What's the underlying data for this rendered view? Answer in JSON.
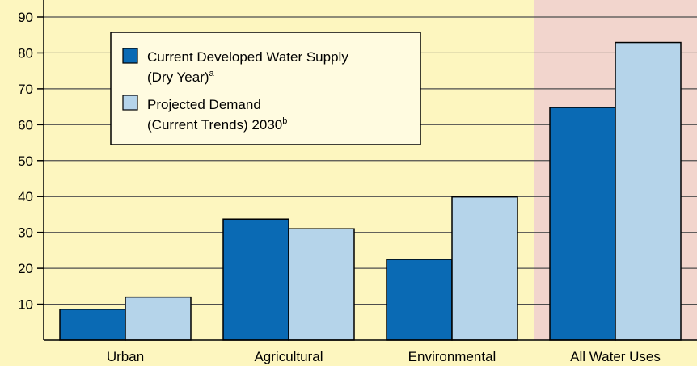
{
  "chart_data": {
    "type": "bar",
    "categories": [
      "Urban",
      "Agricultural",
      "Environmental",
      "All Water Uses"
    ],
    "series": [
      {
        "name": "Current Developed Water Supply (Dry Year)a",
        "legend_line1": "Current Developed Water Supply",
        "legend_line2": "(Dry Year)",
        "legend_sup": "a",
        "color": "#0a6ab4",
        "values": [
          8.6,
          33.7,
          22.5,
          64.8
        ]
      },
      {
        "name": "Projected Demand (Current Trends) 2030b",
        "legend_line1": "Projected Demand",
        "legend_line2": "(Current Trends) 2030",
        "legend_sup": "b",
        "color": "#b5d4ea",
        "values": [
          12.0,
          31.0,
          39.9,
          82.9
        ]
      }
    ],
    "ylim": [
      0,
      90
    ],
    "yticks": [
      "10",
      "20",
      "30",
      "40",
      "50",
      "60",
      "70",
      "80",
      "90"
    ],
    "grid": true,
    "legend_position": "top-left",
    "highlight_category": "All Water Uses",
    "colors": {
      "background": "#fdf6bf",
      "highlight_band": "#f2d5cd",
      "grid": "#4d4d4d",
      "bar_outline": "#000000"
    }
  }
}
